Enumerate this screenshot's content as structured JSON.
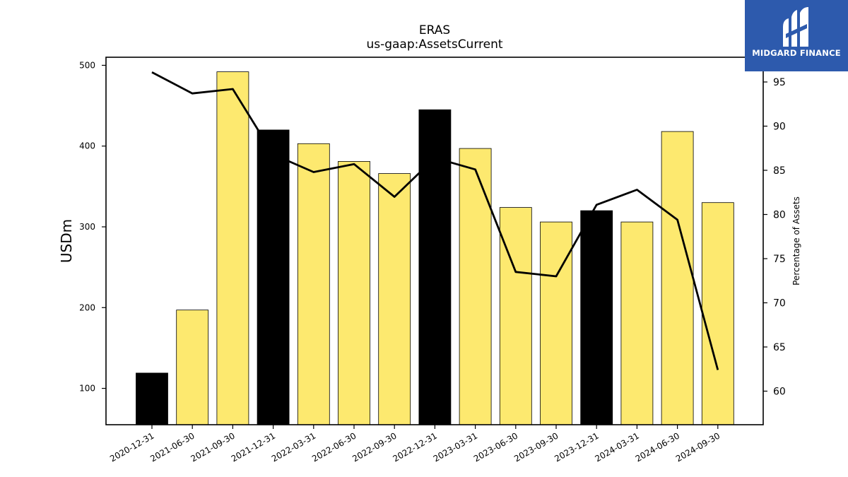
{
  "header": {
    "title": "ERAS",
    "subtitle": "us-gaap:AssetsCurrent"
  },
  "logo": {
    "text": "MIDGARD FINANCE",
    "background": "#2d5aad"
  },
  "chart_data": {
    "type": "bar",
    "title": "ERAS",
    "subtitle": "us-gaap:AssetsCurrent",
    "categories": [
      "2020-12-31",
      "2021-06-30",
      "2021-09-30",
      "2021-12-31",
      "2022-03-31",
      "2022-06-30",
      "2022-09-30",
      "2022-12-31",
      "2023-03-31",
      "2023-06-30",
      "2023-09-30",
      "2023-12-31",
      "2024-03-31",
      "2024-06-30",
      "2024-09-30"
    ],
    "series": [
      {
        "values": [
          119,
          197,
          492,
          420,
          403,
          381,
          366,
          445,
          397,
          324,
          306,
          320,
          306,
          418,
          330
        ],
        "fiscal_year_end": [
          true,
          false,
          false,
          true,
          false,
          false,
          false,
          true,
          false,
          false,
          false,
          true,
          false,
          false,
          false
        ]
      },
      {
        "axis": "right",
        "type": "line",
        "values": [
          96.1,
          93.7,
          94.2,
          86.8,
          84.8,
          85.7,
          82.0,
          86.4,
          85.1,
          73.5,
          73.0,
          81.1,
          82.8,
          79.4,
          62.4
        ]
      }
    ],
    "ylabel": "USDm",
    "ylabel_right": "Percentage of Assets",
    "ylim": [
      55,
      510
    ],
    "ylim_right": [
      56.2,
      97.8
    ],
    "yticks": [
      100,
      200,
      300,
      400,
      500
    ],
    "yticks_right": [
      60,
      65,
      70,
      75,
      80,
      85,
      90,
      95
    ],
    "colors": {
      "bar_default": "#fde96f",
      "bar_fiscal_year_end": "#000000",
      "bar_edge": "#000000",
      "line": "#000000"
    },
    "grid": false,
    "legend": "none"
  }
}
